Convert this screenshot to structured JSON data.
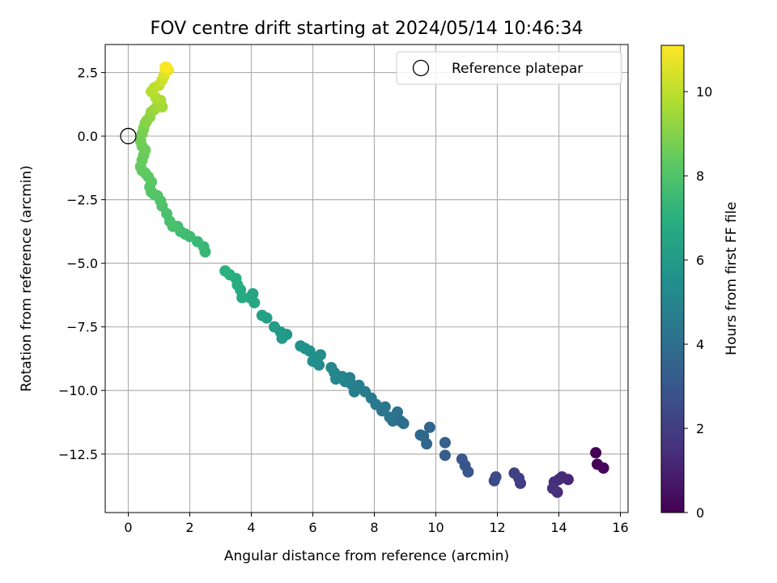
{
  "chart_data": {
    "type": "scatter",
    "title": "FOV centre drift starting at 2024/05/14 10:46:34",
    "xlabel": "Angular distance from reference (arcmin)",
    "ylabel": "Rotation from reference (arcmin)",
    "xlim": [
      -0.75,
      16.25
    ],
    "ylim": [
      -14.8,
      3.6
    ],
    "x_ticks": [
      0,
      2,
      4,
      6,
      8,
      10,
      12,
      14,
      16
    ],
    "x_tick_labels": [
      "0",
      "2",
      "4",
      "6",
      "8",
      "10",
      "12",
      "14",
      "16"
    ],
    "y_ticks": [
      2.5,
      0.0,
      -2.5,
      -5.0,
      -7.5,
      -10.0,
      -12.5
    ],
    "y_tick_labels": [
      "2.5",
      "0.0",
      "−2.5",
      "−5.0",
      "−7.5",
      "−10.0",
      "−12.5"
    ],
    "grid": true,
    "legend": {
      "position": "top-right",
      "entries": [
        {
          "label": "Reference platepar",
          "marker": "open-circle"
        }
      ]
    },
    "reference_point": {
      "x": 0,
      "y": 0
    },
    "colorbar": {
      "label": "Hours from first FF file",
      "colormap": "viridis",
      "range": [
        0,
        11.1
      ],
      "ticks": [
        0,
        2,
        4,
        6,
        8,
        10
      ],
      "tick_labels": [
        "0",
        "2",
        "4",
        "6",
        "8",
        "10"
      ]
    },
    "points": [
      [
        15.2,
        -12.45,
        0.0
      ],
      [
        15.25,
        -12.9,
        0.1
      ],
      [
        15.45,
        -13.05,
        0.2
      ],
      [
        14.3,
        -13.5,
        1.2
      ],
      [
        14.1,
        -13.4,
        1.3
      ],
      [
        14.0,
        -13.5,
        1.35
      ],
      [
        13.95,
        -14.0,
        1.4
      ],
      [
        13.85,
        -13.6,
        1.5
      ],
      [
        13.8,
        -13.85,
        1.55
      ],
      [
        12.75,
        -13.65,
        2.0
      ],
      [
        12.7,
        -13.45,
        2.05
      ],
      [
        12.55,
        -13.25,
        2.1
      ],
      [
        11.9,
        -13.55,
        2.5
      ],
      [
        11.95,
        -13.4,
        2.55
      ],
      [
        11.05,
        -13.2,
        2.9
      ],
      [
        10.95,
        -12.95,
        2.95
      ],
      [
        10.85,
        -12.7,
        3.0
      ],
      [
        10.3,
        -12.55,
        3.3
      ],
      [
        10.3,
        -12.05,
        3.35
      ],
      [
        9.8,
        -11.45,
        3.6
      ],
      [
        9.7,
        -12.1,
        3.65
      ],
      [
        9.6,
        -11.8,
        3.7
      ],
      [
        9.5,
        -11.75,
        3.75
      ],
      [
        8.95,
        -11.3,
        4.0
      ],
      [
        8.85,
        -11.2,
        4.05
      ],
      [
        8.75,
        -10.85,
        4.1
      ],
      [
        8.6,
        -11.2,
        4.15
      ],
      [
        8.5,
        -11.05,
        4.2
      ],
      [
        8.35,
        -10.65,
        4.3
      ],
      [
        8.25,
        -10.8,
        4.35
      ],
      [
        8.05,
        -10.55,
        4.4
      ],
      [
        7.9,
        -10.3,
        4.5
      ],
      [
        7.7,
        -10.05,
        4.6
      ],
      [
        7.5,
        -9.8,
        4.7
      ],
      [
        7.35,
        -10.05,
        4.75
      ],
      [
        7.25,
        -9.75,
        4.8
      ],
      [
        7.2,
        -9.5,
        4.85
      ],
      [
        7.05,
        -9.65,
        4.9
      ],
      [
        6.95,
        -9.45,
        4.95
      ],
      [
        6.75,
        -9.55,
        5.0
      ],
      [
        6.7,
        -9.3,
        5.05
      ],
      [
        6.6,
        -9.1,
        5.1
      ],
      [
        6.2,
        -9.0,
        5.3
      ],
      [
        6.25,
        -8.6,
        5.35
      ],
      [
        6.1,
        -8.75,
        5.4
      ],
      [
        6.0,
        -8.85,
        5.45
      ],
      [
        5.9,
        -8.45,
        5.5
      ],
      [
        5.75,
        -8.35,
        5.55
      ],
      [
        5.6,
        -8.25,
        5.6
      ],
      [
        5.15,
        -7.8,
        5.9
      ],
      [
        5.0,
        -7.95,
        5.95
      ],
      [
        4.95,
        -7.7,
        6.0
      ],
      [
        4.75,
        -7.5,
        6.1
      ],
      [
        4.5,
        -7.15,
        6.25
      ],
      [
        4.35,
        -7.05,
        6.3
      ],
      [
        4.05,
        -6.2,
        6.5
      ],
      [
        4.1,
        -6.55,
        6.55
      ],
      [
        3.95,
        -6.35,
        6.6
      ],
      [
        3.7,
        -6.35,
        6.75
      ],
      [
        3.65,
        -6.05,
        6.8
      ],
      [
        3.55,
        -5.85,
        6.85
      ],
      [
        3.5,
        -5.6,
        6.9
      ],
      [
        3.3,
        -5.45,
        7.0
      ],
      [
        3.15,
        -5.3,
        7.05
      ],
      [
        2.5,
        -4.55,
        7.35
      ],
      [
        2.45,
        -4.35,
        7.4
      ],
      [
        2.25,
        -4.15,
        7.45
      ],
      [
        2.0,
        -3.95,
        7.55
      ],
      [
        1.85,
        -3.85,
        7.6
      ],
      [
        1.7,
        -3.75,
        7.65
      ],
      [
        1.6,
        -3.55,
        7.7
      ],
      [
        1.45,
        -3.55,
        7.75
      ],
      [
        1.35,
        -3.35,
        7.8
      ],
      [
        1.25,
        -3.05,
        7.85
      ],
      [
        1.1,
        -2.75,
        7.9
      ],
      [
        1.05,
        -2.55,
        7.95
      ],
      [
        0.95,
        -2.35,
        8.0
      ],
      [
        0.85,
        -2.3,
        8.05
      ],
      [
        0.75,
        -2.2,
        8.1
      ],
      [
        0.7,
        -2.0,
        8.15
      ],
      [
        0.75,
        -1.8,
        8.2
      ],
      [
        0.65,
        -1.6,
        8.25
      ],
      [
        0.55,
        -1.45,
        8.3
      ],
      [
        0.45,
        -1.35,
        8.35
      ],
      [
        0.4,
        -1.2,
        8.4
      ],
      [
        0.45,
        -0.95,
        8.45
      ],
      [
        0.5,
        -0.75,
        8.5
      ],
      [
        0.55,
        -0.55,
        8.55
      ],
      [
        0.45,
        -0.4,
        8.6
      ],
      [
        0.4,
        -0.2,
        8.65
      ],
      [
        0.45,
        0.1,
        8.75
      ],
      [
        0.5,
        0.3,
        8.85
      ],
      [
        0.55,
        0.5,
        8.95
      ],
      [
        0.6,
        0.6,
        9.05
      ],
      [
        0.7,
        0.75,
        9.15
      ],
      [
        0.75,
        0.95,
        9.25
      ],
      [
        0.85,
        1.05,
        9.35
      ],
      [
        0.95,
        1.2,
        9.45
      ],
      [
        1.1,
        1.15,
        9.55
      ],
      [
        1.05,
        1.4,
        9.65
      ],
      [
        0.9,
        1.5,
        9.75
      ],
      [
        0.75,
        1.75,
        9.85
      ],
      [
        0.85,
        1.9,
        9.95
      ],
      [
        1.0,
        2.0,
        10.05
      ],
      [
        1.1,
        2.2,
        10.2
      ],
      [
        1.15,
        2.35,
        10.35
      ],
      [
        1.2,
        2.5,
        10.5
      ],
      [
        1.25,
        2.6,
        10.65
      ],
      [
        1.3,
        2.6,
        10.8
      ],
      [
        1.2,
        2.7,
        10.95
      ],
      [
        1.25,
        2.7,
        11.05
      ]
    ]
  }
}
